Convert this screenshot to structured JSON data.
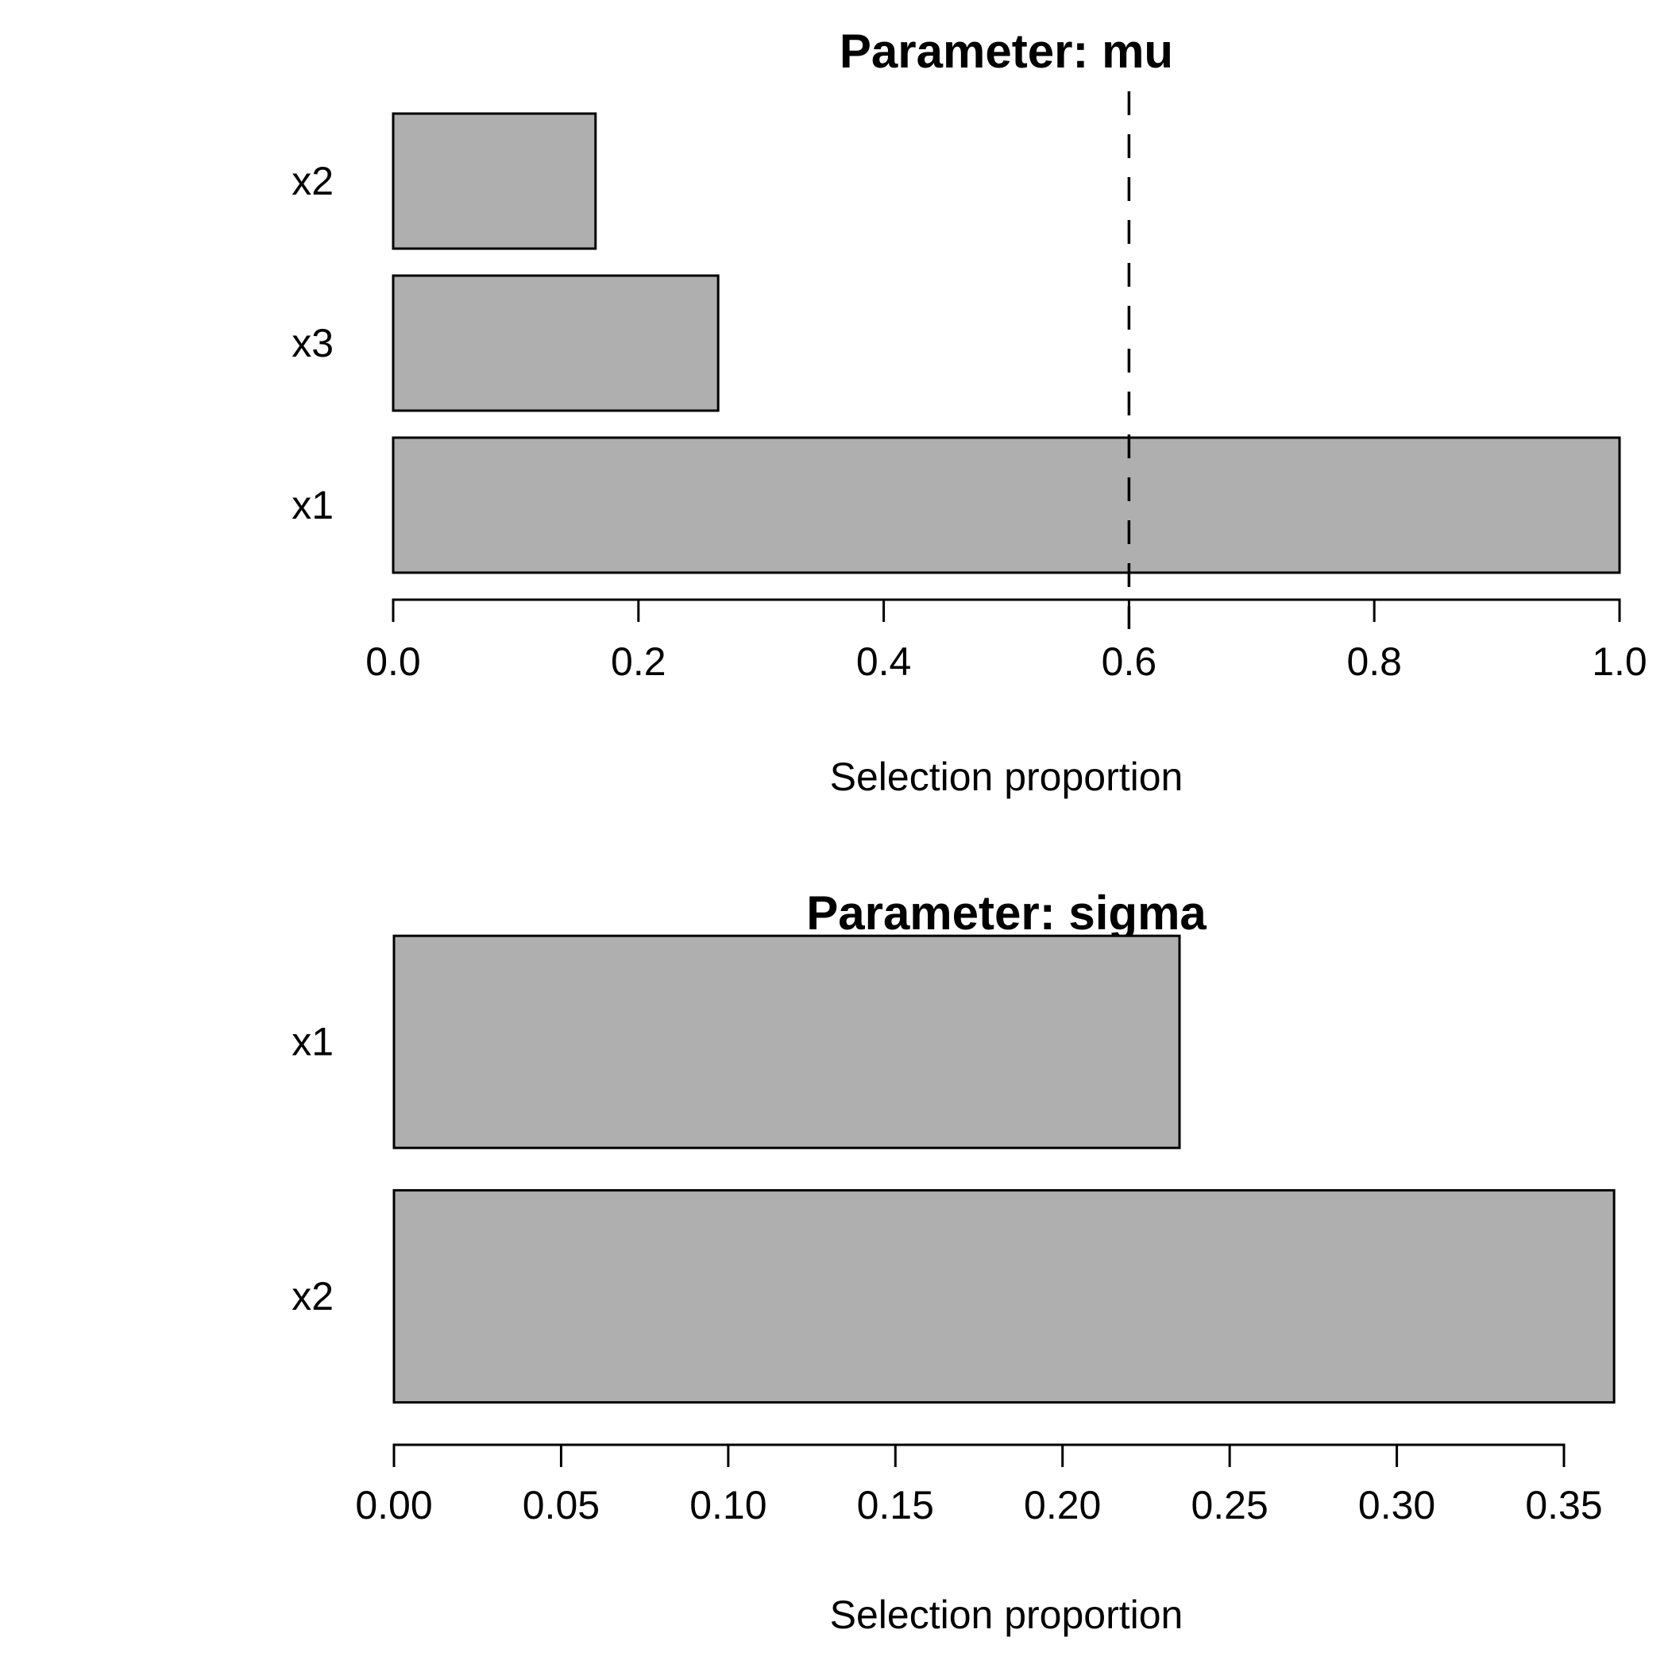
{
  "colors": {
    "background": "#ffffff",
    "bar_fill": "#afafaf",
    "bar_stroke": "#000000",
    "axis": "#000000",
    "text": "#000000",
    "threshold_line": "#000000"
  },
  "chart_data": [
    {
      "type": "bar",
      "orientation": "horizontal",
      "title": "Parameter: mu",
      "xlabel": "Selection proportion",
      "categories_top_to_bottom": [
        "x2",
        "x3",
        "x1"
      ],
      "values_top_to_bottom": [
        0.165,
        0.265,
        1.0
      ],
      "x_range": [
        0,
        1.0
      ],
      "x_tick_values": [
        0,
        0.2,
        0.4,
        0.6,
        0.8,
        1.0
      ],
      "x_tick_labels": [
        "0.0",
        "0.2",
        "0.4",
        "0.6",
        "0.8",
        "1.0"
      ],
      "threshold_vline": {
        "value": 0.6,
        "style": "dashed"
      },
      "grid": false,
      "legend": false
    },
    {
      "type": "bar",
      "orientation": "horizontal",
      "title": "Parameter: sigma",
      "xlabel": "Selection proportion",
      "categories_top_to_bottom": [
        "x1",
        "x2"
      ],
      "values_top_to_bottom": [
        0.235,
        0.365
      ],
      "x_range": [
        0,
        0.35
      ],
      "x_tick_values": [
        0,
        0.05,
        0.1,
        0.15,
        0.2,
        0.25,
        0.3,
        0.35
      ],
      "x_tick_labels": [
        "0.00",
        "0.05",
        "0.10",
        "0.15",
        "0.20",
        "0.25",
        "0.30",
        "0.35"
      ],
      "threshold_vline": null,
      "grid": false,
      "legend": false
    }
  ]
}
